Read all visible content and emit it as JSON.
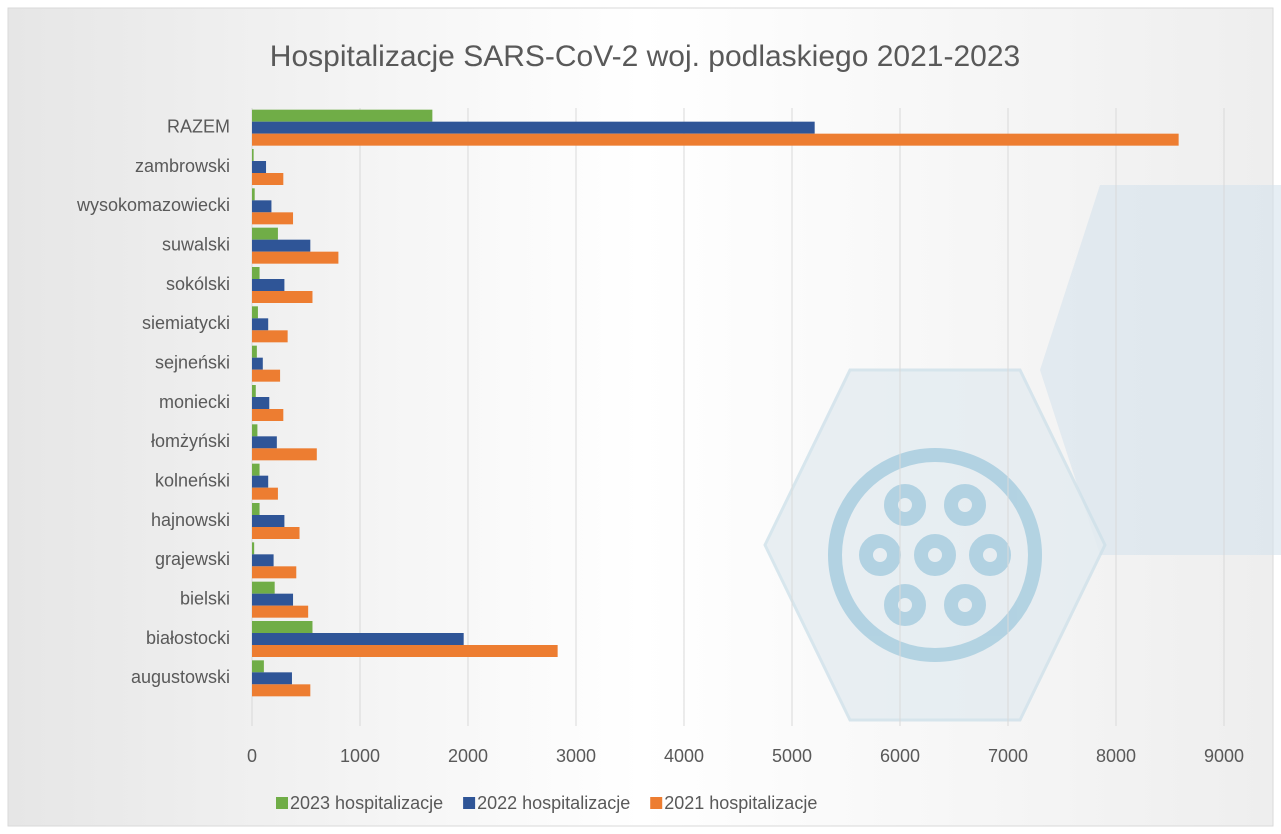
{
  "chart_data": {
    "type": "hbar",
    "title": "Hospitalizacje SARS-CoV-2 woj. podlaskiego 2021-2023",
    "categories": [
      "RAZEM",
      "zambrowski",
      "wysokomazowiecki",
      "suwalski",
      "sokólski",
      "siemiatycki",
      "sejneński",
      "moniecki",
      "łomżyński",
      "kolneński",
      "hajnowski",
      "grajewski",
      "bielski",
      "białostocki",
      "augustowski"
    ],
    "series": [
      {
        "name": "2023 hospitalizacje",
        "color": "#70ad47",
        "values": [
          1670,
          15,
          25,
          240,
          70,
          55,
          45,
          35,
          50,
          70,
          70,
          20,
          210,
          560,
          110
        ]
      },
      {
        "name": "2022 hospitalizacje",
        "color": "#2f5597",
        "values": [
          5210,
          130,
          180,
          540,
          300,
          150,
          100,
          160,
          230,
          150,
          300,
          200,
          380,
          1960,
          370
        ]
      },
      {
        "name": "2021 hospitalizacje",
        "color": "#ed7d31",
        "values": [
          8580,
          290,
          380,
          800,
          560,
          330,
          260,
          290,
          600,
          240,
          440,
          410,
          520,
          2830,
          540
        ]
      }
    ],
    "xlim": [
      0,
      9000
    ],
    "xticks": [
      0,
      1000,
      2000,
      3000,
      4000,
      5000,
      6000,
      7000,
      8000,
      9000
    ],
    "grid": true,
    "legend": "bottom"
  }
}
